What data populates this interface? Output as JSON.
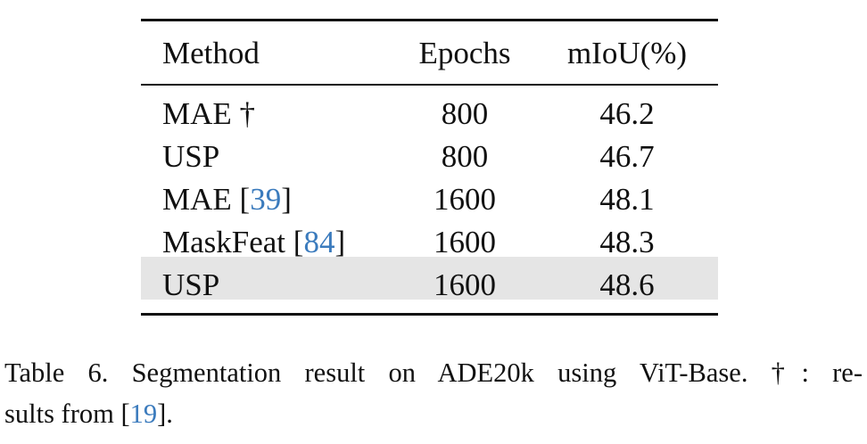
{
  "table": {
    "columns": [
      "Method",
      "Epochs",
      "mIoU(%)"
    ],
    "rows": [
      {
        "method": [
          {
            "text": "MAE †"
          }
        ],
        "epochs": 800,
        "miou": 46.2
      },
      {
        "method": [
          {
            "text": "USP"
          }
        ],
        "epochs": 800,
        "miou": 46.7
      },
      {
        "method": [
          {
            "text": "MAE ["
          },
          {
            "text": "39",
            "link": true
          },
          {
            "text": "]"
          }
        ],
        "epochs": 1600,
        "miou": 48.1
      },
      {
        "method": [
          {
            "text": "MaskFeat ["
          },
          {
            "text": "84",
            "link": true
          },
          {
            "text": "]"
          }
        ],
        "epochs": 1600,
        "miou": 48.3
      },
      {
        "method": [
          {
            "text": "USP"
          }
        ],
        "epochs": 1600,
        "miou": 48.6,
        "highlight": true
      }
    ],
    "highlight_color": "#e5e5e5",
    "link_color": "#3b7bbd"
  },
  "caption": {
    "lines": [
      [
        {
          "text": "Table 6.  Segmentation result on ADE20k using ViT-Base.  †: re-"
        }
      ],
      [
        {
          "text": "sults from ["
        },
        {
          "text": "19",
          "link": true
        },
        {
          "text": "]."
        }
      ]
    ]
  }
}
